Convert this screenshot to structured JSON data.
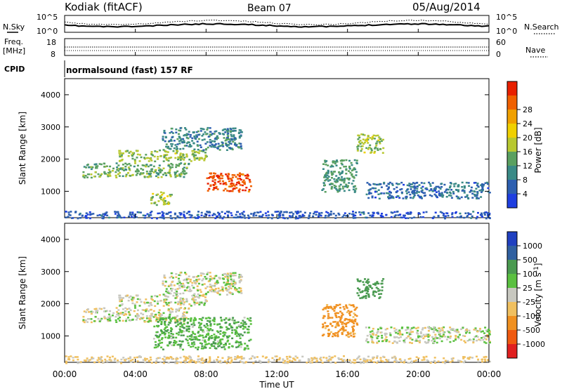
{
  "header": {
    "station": "Kodiak (fitACF)",
    "beam": "Beam 07",
    "date": "05/Aug/2014"
  },
  "top_panel": {
    "left_label": "N.Sky",
    "right_label": "N.Search",
    "left_ticks": [
      "10^5",
      "10^0"
    ],
    "right_ticks": [
      "10^5",
      "10^0"
    ]
  },
  "freq_panel": {
    "left_label_line1": "Freq.",
    "left_label_line2": "[MHz]",
    "right_label": "Nave",
    "left_ticks": [
      "18",
      "8"
    ],
    "right_ticks": [
      "60",
      "0"
    ]
  },
  "cpid": {
    "label": "CPID",
    "text": "normalsound (fast) 157 RF"
  },
  "colors": {
    "power": [
      "#1f3fe0",
      "#2d5fb0",
      "#3a8a86",
      "#5aa060",
      "#b8c830",
      "#f0d000",
      "#f0a000",
      "#f06000",
      "#e82000"
    ],
    "velocity": [
      "#e02020",
      "#f05a10",
      "#f09020",
      "#f0c060",
      "#c8c8c0",
      "#5ac040",
      "#4a9a50",
      "#3060a0",
      "#2040c0"
    ]
  },
  "chart_data": [
    {
      "type": "heatmap",
      "title": "",
      "xlabel": "Time UT",
      "ylabel": "Slant Range [km]",
      "xlim": [
        0,
        24
      ],
      "ylim": [
        180,
        4500
      ],
      "x_ticks": [
        "00:00",
        "04:00",
        "08:00",
        "12:00",
        "16:00",
        "20:00",
        "00:00"
      ],
      "y_ticks": [
        1000,
        2000,
        3000,
        4000
      ],
      "colorbar": {
        "label": "Power [dB]",
        "range": [
          0,
          30
        ],
        "ticks": [
          4,
          8,
          12,
          16,
          20,
          24,
          28
        ]
      },
      "features": [
        {
          "t": [
            1.0,
            7.0
          ],
          "r": [
            1450,
            1900
          ],
          "level": 12
        },
        {
          "t": [
            3.0,
            8.0
          ],
          "r": [
            1950,
            2300
          ],
          "level": 14
        },
        {
          "t": [
            5.5,
            10.0
          ],
          "r": [
            2300,
            3000
          ],
          "level": 8
        },
        {
          "t": [
            8.0,
            10.5
          ],
          "r": [
            1000,
            1600
          ],
          "level": 26
        },
        {
          "t": [
            4.8,
            6.0
          ],
          "r": [
            600,
            1000
          ],
          "level": 14
        },
        {
          "t": [
            14.5,
            16.5
          ],
          "r": [
            1000,
            2000
          ],
          "level": 10
        },
        {
          "t": [
            16.5,
            18.0
          ],
          "r": [
            2200,
            2800
          ],
          "level": 14
        },
        {
          "t": [
            17.0,
            24.0
          ],
          "r": [
            800,
            1300
          ],
          "level": 6
        },
        {
          "t": [
            0.0,
            24.0
          ],
          "r": [
            180,
            400
          ],
          "level": 4
        }
      ]
    },
    {
      "type": "heatmap",
      "title": "",
      "xlabel": "Time UT",
      "ylabel": "Slant Range [km]",
      "xlim": [
        0,
        24
      ],
      "ylim": [
        180,
        4500
      ],
      "x_ticks": [
        "00:00",
        "04:00",
        "08:00",
        "12:00",
        "16:00",
        "20:00",
        "00:00"
      ],
      "y_ticks": [
        1000,
        2000,
        3000,
        4000
      ],
      "colorbar": {
        "label": "Velocity [m s^-1]",
        "ticks": [
          "1000",
          "500",
          "100",
          "25",
          "-25",
          "-100",
          "-500",
          "-1000"
        ]
      },
      "features": [
        {
          "t": [
            1.0,
            7.0
          ],
          "r": [
            1450,
            1900
          ],
          "velocity": 0
        },
        {
          "t": [
            3.0,
            8.0
          ],
          "r": [
            1950,
            2300
          ],
          "velocity": 0
        },
        {
          "t": [
            5.5,
            10.0
          ],
          "r": [
            2300,
            3000
          ],
          "velocity": 0
        },
        {
          "t": [
            5.0,
            10.5
          ],
          "r": [
            600,
            1600
          ],
          "velocity": 80
        },
        {
          "t": [
            14.5,
            16.5
          ],
          "r": [
            1000,
            2000
          ],
          "velocity": -150
        },
        {
          "t": [
            16.5,
            18.0
          ],
          "r": [
            2200,
            2800
          ],
          "velocity": 200
        },
        {
          "t": [
            17.0,
            24.0
          ],
          "r": [
            800,
            1300
          ],
          "velocity": 0
        },
        {
          "t": [
            0.0,
            24.0
          ],
          "r": [
            180,
            400
          ],
          "velocity": -40
        }
      ]
    }
  ]
}
